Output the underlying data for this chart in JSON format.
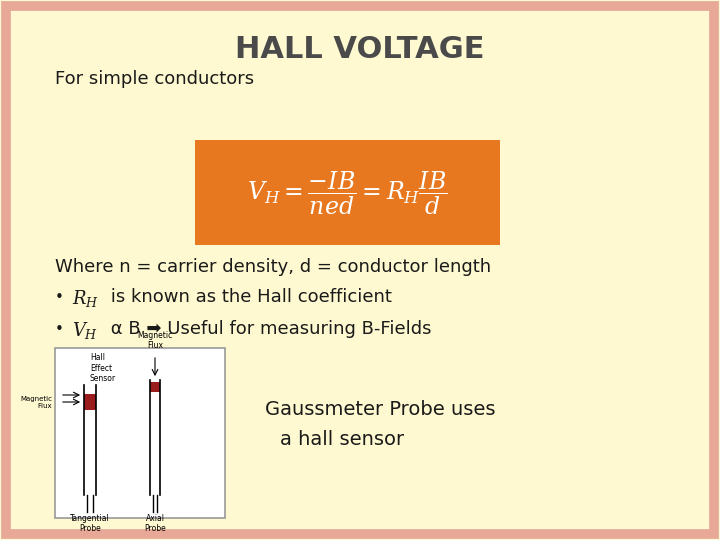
{
  "title": "HALL VOLTAGE",
  "title_fontsize": 22,
  "title_fontweight": "bold",
  "title_color": "#4a4a4a",
  "background_color": "#fef9d0",
  "border_color": "#e8a898",
  "subtitle": "For simple conductors",
  "subtitle_fontsize": 13,
  "formula_box_color": "#e87820",
  "formula_text": "$V_{H} = \\dfrac{-IB}{ned} = R_{H}\\dfrac{IB}{d}$",
  "formula_fontsize": 17,
  "line1": "Where n = carrier density, d = conductor length",
  "line1_fontsize": 13,
  "bullet1_fontsize": 13,
  "bullet2_fontsize": 13,
  "gaussmeter_line1": "Gaussmeter Probe uses",
  "gaussmeter_line2": "a hall sensor",
  "gaussmeter_fontsize": 14,
  "text_color": "#1a1a1a"
}
